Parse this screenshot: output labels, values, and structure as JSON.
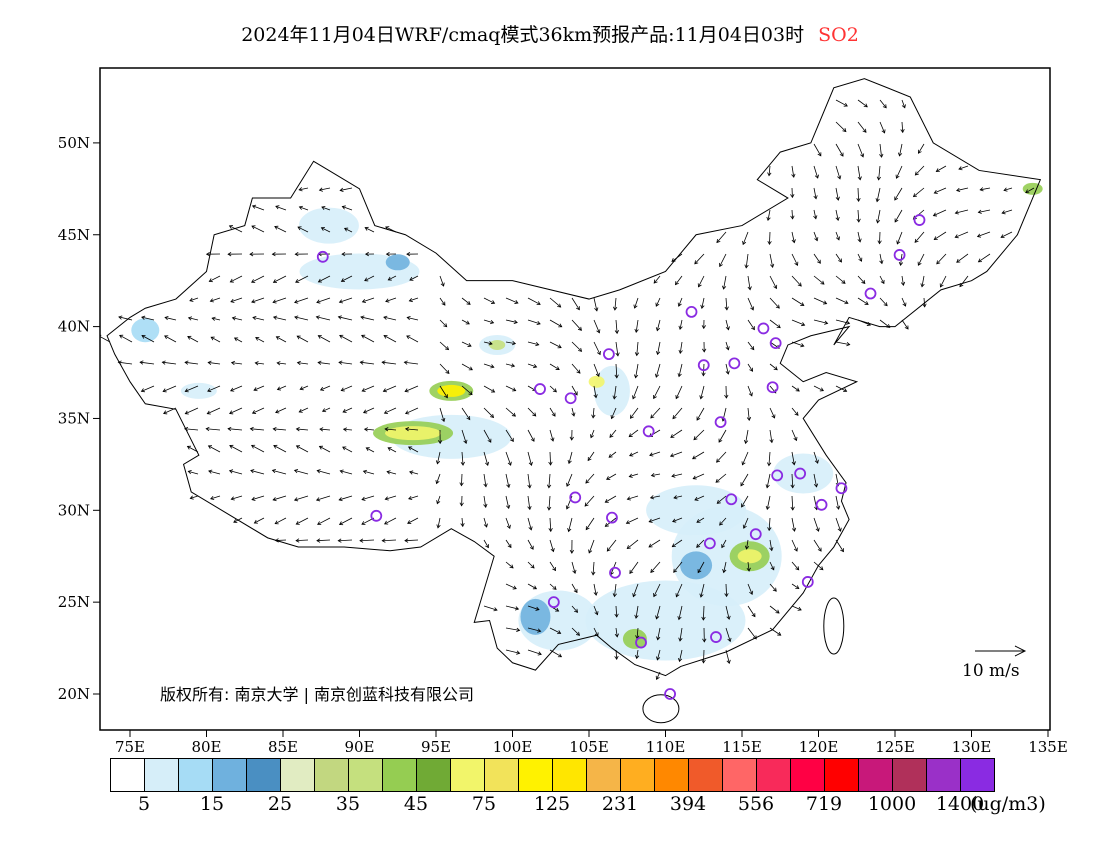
{
  "title": {
    "main": "2024年11月04日WRF/cmaq模式36km预报产品:11月04日03时",
    "species": "SO2",
    "species_color": "#ff3333"
  },
  "map": {
    "lat_ticks": [
      "20N",
      "25N",
      "30N",
      "35N",
      "40N",
      "45N",
      "50N"
    ],
    "lon_ticks": [
      "75E",
      "80E",
      "85E",
      "90E",
      "95E",
      "100E",
      "105E",
      "110E",
      "115E",
      "120E",
      "125E",
      "130E",
      "135E"
    ],
    "watermark": "版权所有: 南京大学 | 南京创蓝科技有限公司",
    "wind_reference": "10 m/s"
  },
  "colorbar": {
    "colors": [
      "#ffffff",
      "#d6eef9",
      "#a6dcf5",
      "#6fb1de",
      "#4a8fc2",
      "#e1ecc2",
      "#c2d780",
      "#c5e07e",
      "#95cd52",
      "#70aa35",
      "#f2f56a",
      "#f2e35a",
      "#fff200",
      "#ffe600",
      "#f5b548",
      "#ffae20",
      "#ff8800",
      "#f05a2a",
      "#ff6666",
      "#f82a5a",
      "#ff0044",
      "#ff0000",
      "#c8187a",
      "#b0305a",
      "#9a30c8",
      "#8a2be2"
    ],
    "labels": [
      "5",
      "15",
      "25",
      "35",
      "45",
      "75",
      "125",
      "231",
      "394",
      "556",
      "719",
      "1000",
      "1400"
    ],
    "unit": "(ug/m3)"
  }
}
